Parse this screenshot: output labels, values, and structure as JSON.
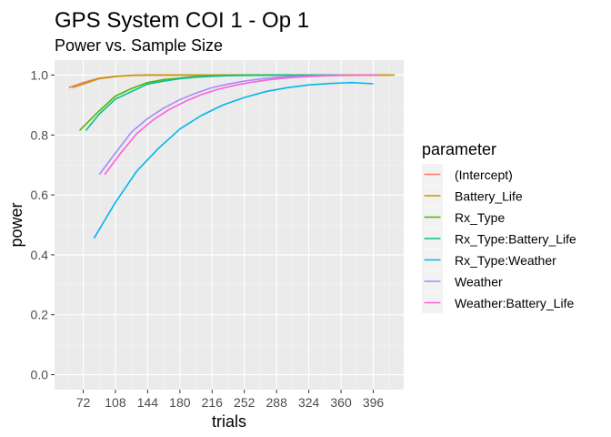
{
  "chart_data": {
    "type": "line",
    "title": "GPS System COI 1 - Op 1",
    "subtitle": "Power vs. Sample Size",
    "xlabel": "trials",
    "ylabel": "power",
    "xlim": [
      40,
      430
    ],
    "ylim": [
      -0.05,
      1.05
    ],
    "x_ticks": [
      72,
      108,
      144,
      180,
      216,
      252,
      288,
      324,
      360,
      396
    ],
    "y_ticks": [
      "0.0",
      "0.2",
      "0.4",
      "0.6",
      "0.8",
      "1.0"
    ],
    "y_tick_values": [
      0,
      0.2,
      0.4,
      0.6,
      0.8,
      1.0
    ],
    "grid": true,
    "legend": {
      "title": "parameter",
      "position": "right"
    },
    "series": [
      {
        "name": "(Intercept)",
        "color": "#F8766D",
        "x": [
          56,
          72,
          90,
          108,
          126,
          144,
          162,
          180,
          198,
          216,
          252,
          288,
          324,
          360,
          396,
          414
        ],
        "y": [
          0.958,
          0.975,
          0.99,
          0.996,
          0.999,
          1.0,
          1.0,
          1.0,
          1.0,
          1.0,
          1.0,
          1.0,
          1.0,
          1.0,
          1.0,
          1.0
        ]
      },
      {
        "name": "Battery_Life",
        "color": "#C49A00",
        "x": [
          60,
          72,
          90,
          108,
          126,
          144,
          162,
          180,
          198,
          216,
          252,
          288,
          324,
          360,
          396,
          420
        ],
        "y": [
          0.958,
          0.97,
          0.988,
          0.995,
          0.999,
          1.0,
          1.0,
          1.0,
          1.0,
          1.0,
          1.0,
          1.0,
          1.0,
          1.0,
          1.0,
          1.0
        ]
      },
      {
        "name": "Rx_Type",
        "color": "#53B400",
        "x": [
          68,
          88,
          108,
          126,
          144,
          162,
          180,
          198,
          216,
          234,
          252,
          288,
          324,
          360
        ],
        "y": [
          0.815,
          0.875,
          0.93,
          0.955,
          0.975,
          0.985,
          0.99,
          0.995,
          0.997,
          0.999,
          1.0,
          1.0,
          1.0,
          1.0
        ]
      },
      {
        "name": "Rx_Type:Battery_Life",
        "color": "#00C094",
        "x": [
          75,
          90,
          108,
          126,
          144,
          162,
          180,
          198,
          216,
          234,
          252,
          288,
          324,
          360
        ],
        "y": [
          0.815,
          0.87,
          0.92,
          0.945,
          0.97,
          0.98,
          0.988,
          0.993,
          0.996,
          0.998,
          0.999,
          1.0,
          1.0,
          1.0
        ]
      },
      {
        "name": "Rx_Type:Weather",
        "color": "#00B6EB",
        "x": [
          84,
          108,
          132,
          156,
          180,
          204,
          228,
          252,
          276,
          300,
          324,
          348,
          372,
          396
        ],
        "y": [
          0.455,
          0.575,
          0.68,
          0.755,
          0.82,
          0.865,
          0.9,
          0.925,
          0.945,
          0.958,
          0.967,
          0.972,
          0.975,
          0.971
        ]
      },
      {
        "name": "Weather",
        "color": "#A58AFF",
        "x": [
          90,
          108,
          126,
          144,
          162,
          180,
          198,
          216,
          234,
          252,
          270,
          288,
          306,
          324,
          342,
          360
        ],
        "y": [
          0.668,
          0.74,
          0.81,
          0.855,
          0.89,
          0.918,
          0.94,
          0.958,
          0.97,
          0.98,
          0.987,
          0.992,
          0.995,
          0.997,
          0.999,
          1.0
        ]
      },
      {
        "name": "Weather:Battery_Life",
        "color": "#FB61D7",
        "x": [
          96,
          114,
          132,
          150,
          168,
          186,
          204,
          222,
          240,
          258,
          276,
          294,
          312,
          330,
          348,
          366,
          384,
          402
        ],
        "y": [
          0.668,
          0.74,
          0.805,
          0.85,
          0.885,
          0.912,
          0.935,
          0.952,
          0.965,
          0.975,
          0.983,
          0.989,
          0.993,
          0.996,
          0.998,
          0.999,
          1.0,
          1.0
        ]
      }
    ]
  }
}
